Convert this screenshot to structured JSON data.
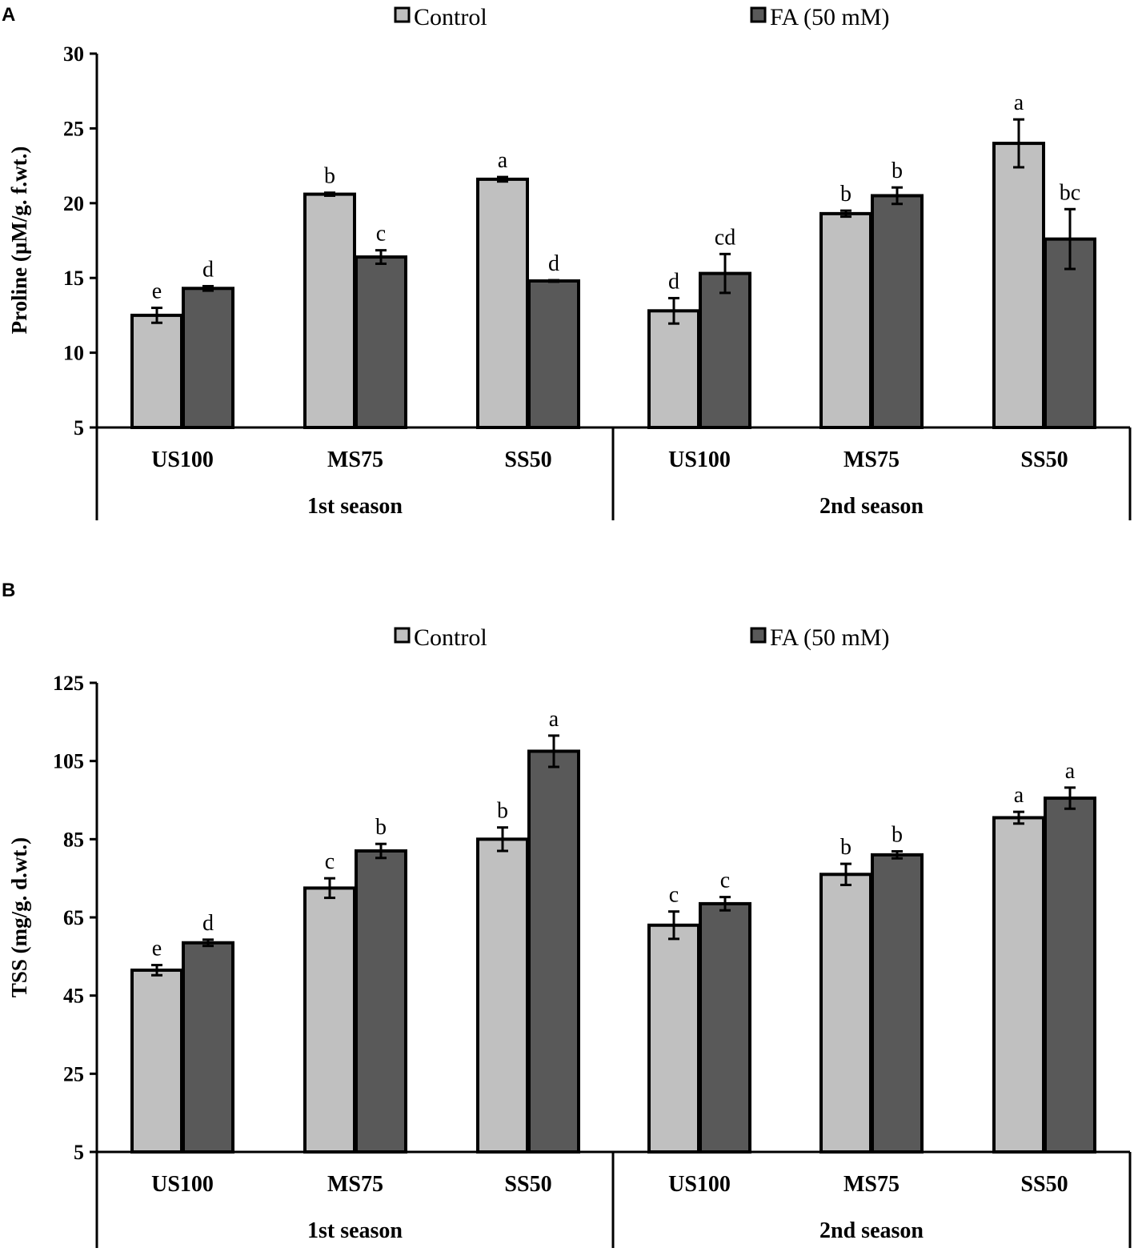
{
  "legend": {
    "control": "Control",
    "fa": "FA (50 mM)"
  },
  "colors": {
    "control": "#c0c0c0",
    "fa": "#595959",
    "axis": "#000000"
  },
  "chart_data": [
    {
      "panel": "A",
      "type": "bar",
      "ylabel": "Proline (µM/g. f.wt.)",
      "ylim": [
        5,
        30
      ],
      "yticks": [
        5,
        10,
        15,
        20,
        25,
        30
      ],
      "categories": [
        "US100",
        "MS75",
        "SS50",
        "US100",
        "MS75",
        "SS50"
      ],
      "groups": [
        "1st season",
        "2nd season"
      ],
      "series": [
        {
          "name": "Control",
          "values": [
            12.5,
            20.6,
            21.6,
            12.8,
            19.3,
            24.0
          ],
          "errors": [
            0.5,
            0.1,
            0.15,
            0.85,
            0.2,
            1.6
          ],
          "labels": [
            "e",
            "b",
            "a",
            "d",
            "b",
            "a"
          ]
        },
        {
          "name": "FA (50 mM)",
          "values": [
            14.3,
            16.4,
            14.8,
            15.3,
            20.5,
            17.6
          ],
          "errors": [
            0.15,
            0.45,
            0.05,
            1.3,
            0.55,
            2.0
          ],
          "labels": [
            "d",
            "c",
            "d",
            "cd",
            "b",
            "bc"
          ]
        }
      ]
    },
    {
      "panel": "B",
      "type": "bar",
      "ylabel": "TSS (mg/g. d.wt.)",
      "ylim": [
        5,
        125
      ],
      "yticks": [
        5,
        25,
        45,
        65,
        85,
        105,
        125
      ],
      "categories": [
        "US100",
        "MS75",
        "SS50",
        "US100",
        "MS75",
        "SS50"
      ],
      "groups": [
        "1st season",
        "2nd season"
      ],
      "series": [
        {
          "name": "Control",
          "values": [
            51.5,
            72.5,
            85.0,
            63.0,
            76.0,
            90.5
          ],
          "errors": [
            1.3,
            2.5,
            3.0,
            3.5,
            2.7,
            1.5
          ],
          "labels": [
            "e",
            "c",
            "b",
            "c",
            "b",
            "a"
          ]
        },
        {
          "name": "FA (50 mM)",
          "values": [
            58.5,
            82.0,
            107.5,
            68.5,
            81.0,
            95.5
          ],
          "errors": [
            0.8,
            1.8,
            4.0,
            1.7,
            0.9,
            2.7
          ],
          "labels": [
            "d",
            "b",
            "a",
            "c",
            "b",
            "a"
          ]
        }
      ]
    }
  ]
}
